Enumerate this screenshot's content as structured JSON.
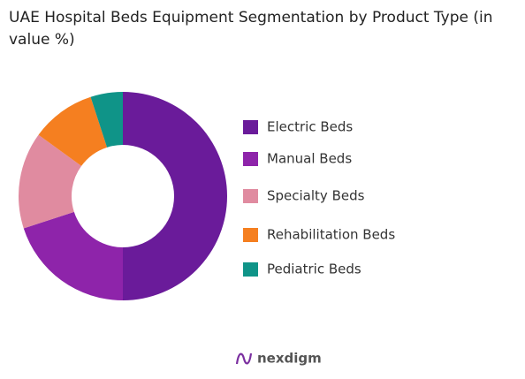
{
  "chart_data": {
    "type": "donut",
    "title": "UAE Hospital Beds Equipment Segmentation by Product Type (in value %)",
    "categories": [
      "Electric Beds",
      "Manual Beds",
      "Specialty Beds",
      "Rehabilitation Beds",
      "Pediatric Beds"
    ],
    "values": [
      50,
      20,
      15,
      10,
      5
    ],
    "colors": [
      "#6a1b9a",
      "#8e24aa",
      "#e08ba0",
      "#f57f20",
      "#0f9488"
    ]
  },
  "brand": "nexdigm"
}
